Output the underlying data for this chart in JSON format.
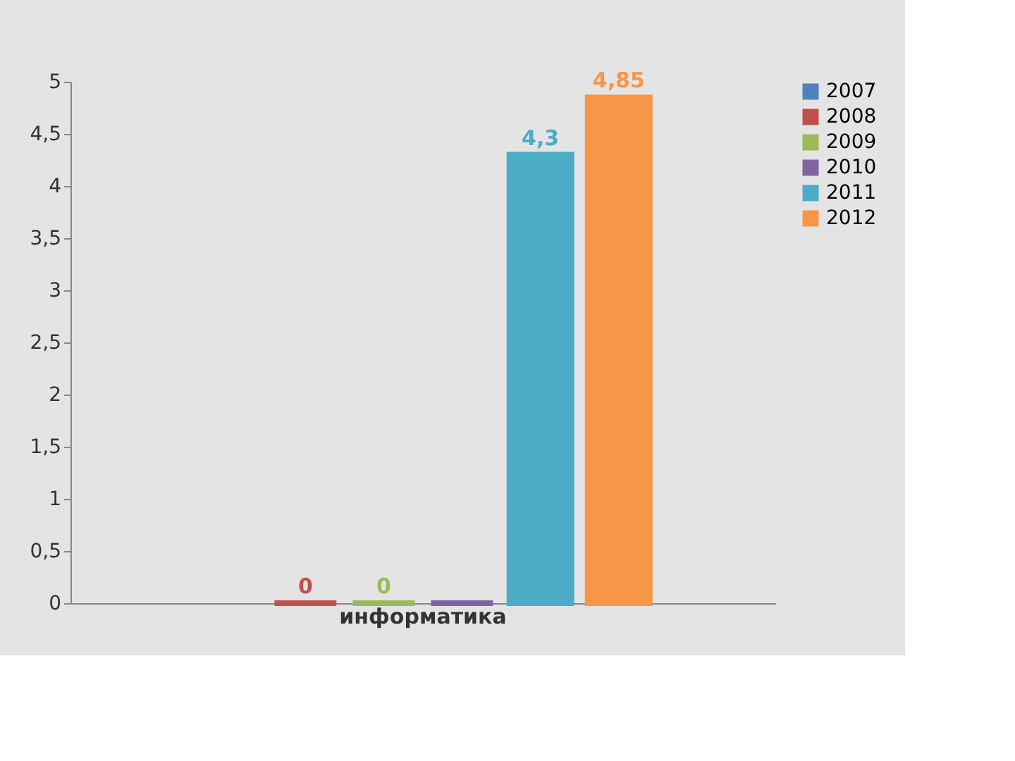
{
  "chart_data": {
    "type": "bar",
    "categories": [
      "информатика"
    ],
    "series": [
      {
        "name": "2007",
        "color": "#4f81bd",
        "values": [
          null
        ],
        "value_labels": [
          null
        ]
      },
      {
        "name": "2008",
        "color": "#c0504d",
        "values": [
          0
        ],
        "value_labels": [
          "0"
        ]
      },
      {
        "name": "2009",
        "color": "#9bbb59",
        "values": [
          0
        ],
        "value_labels": [
          "0"
        ]
      },
      {
        "name": "2010",
        "color": "#8064a2",
        "values": [
          0
        ],
        "value_labels": [
          null
        ]
      },
      {
        "name": "2011",
        "color": "#4bacc6",
        "values": [
          4.3
        ],
        "value_labels": [
          "4,3"
        ]
      },
      {
        "name": "2012",
        "color": "#f79646",
        "values": [
          4.85
        ],
        "value_labels": [
          "4,85"
        ]
      }
    ],
    "ylim": [
      0,
      5
    ],
    "yticks": [
      0,
      {
        "value": 0.5,
        "label": "0,5"
      },
      1,
      {
        "value": 1.5,
        "label": "1,5"
      },
      2,
      {
        "value": 2.5,
        "label": "2,5"
      },
      3,
      {
        "value": 3.5,
        "label": "3,5"
      },
      4,
      {
        "value": 4.5,
        "label": "4,5"
      },
      5
    ],
    "grid": false,
    "legend": "right"
  }
}
